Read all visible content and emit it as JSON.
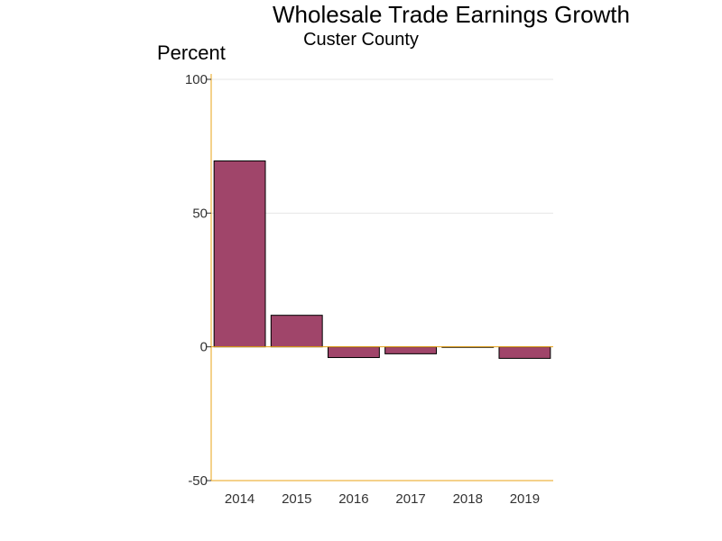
{
  "colors": {
    "bar_fill": "#a0456a",
    "bar_stroke": "#000000",
    "axis": "#e8a317",
    "grid": "#e6e6e6"
  },
  "chart_data": {
    "type": "bar",
    "title": "Wholesale Trade Earnings Growth",
    "subtitle": "Custer County",
    "ylabel": "Percent",
    "xlabel": "",
    "categories": [
      "2014",
      "2015",
      "2016",
      "2017",
      "2018",
      "2019"
    ],
    "values": [
      69.5,
      11.8,
      -4.0,
      -2.6,
      -0.2,
      -4.3
    ],
    "ylim": [
      -50,
      100
    ],
    "yticks": [
      -50,
      0,
      50,
      100
    ],
    "grid": true,
    "legend": "none"
  }
}
